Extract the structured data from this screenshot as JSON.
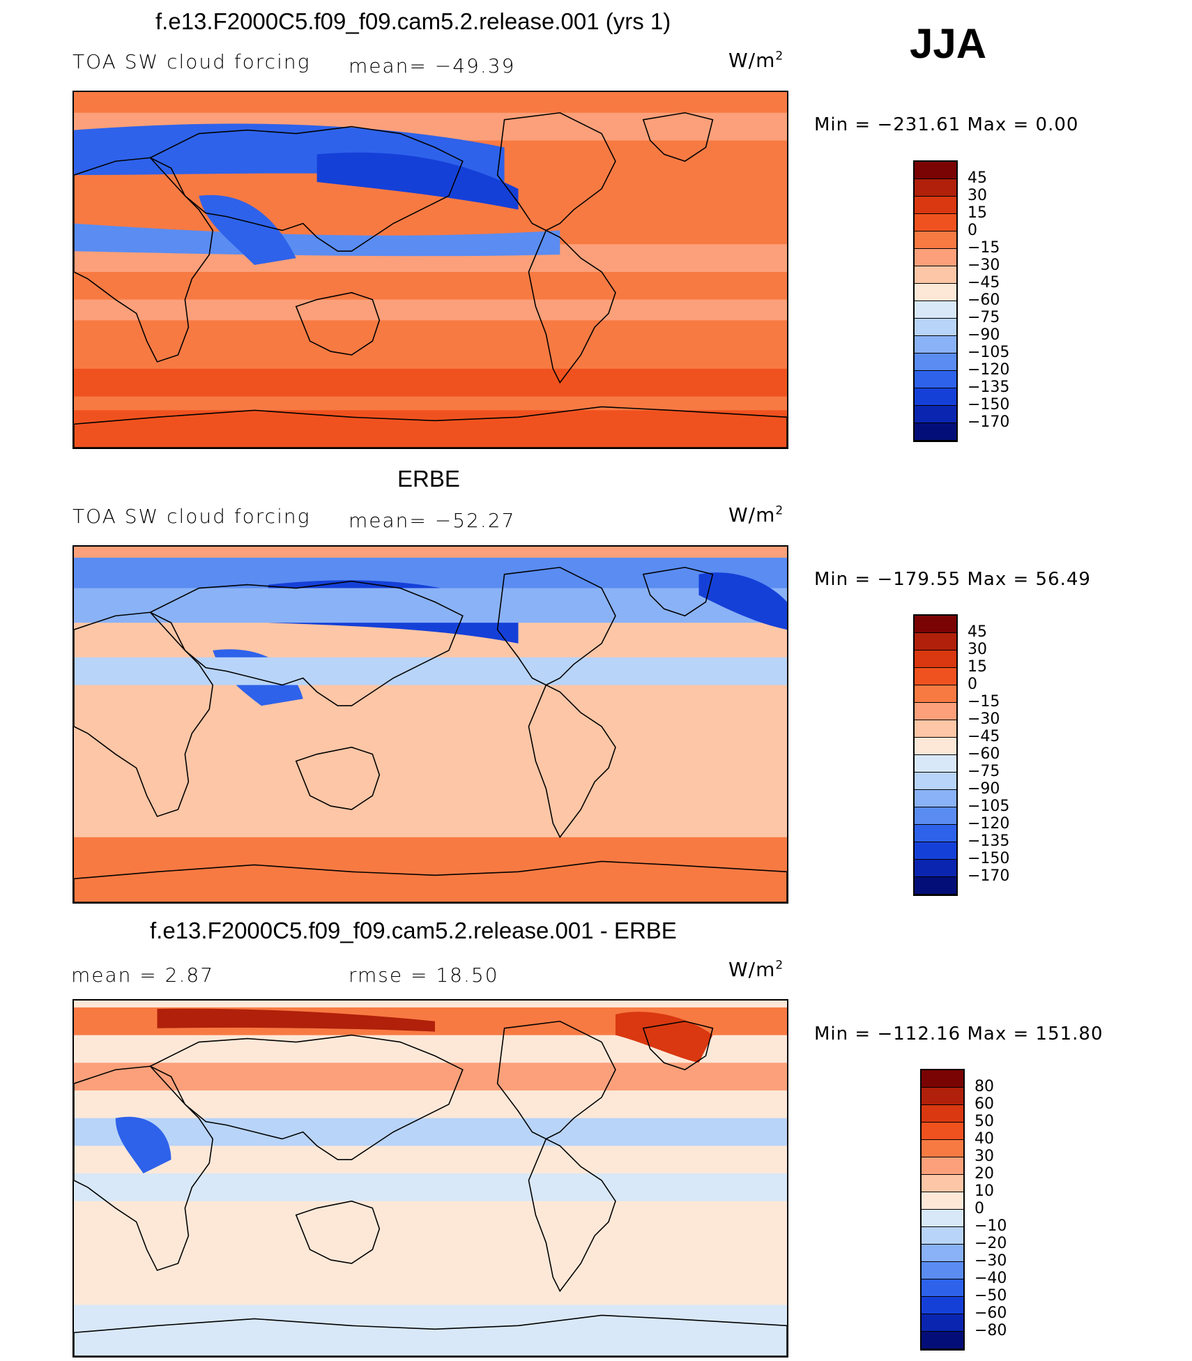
{
  "header": {
    "season": "JJA"
  },
  "chart_data": [
    {
      "type": "heatmap",
      "title": "f.e13.F2000C5.f09_f09.cam5.2.release.001 (yrs 1)",
      "left_label": "TOA SW cloud forcing",
      "center_label": "mean= −49.39",
      "units_base": "W/m",
      "units_exp": "2",
      "min_label": "Min  =  −231.61  Max  =     0.00",
      "levels": [
        "45",
        "30",
        "15",
        "0",
        "−15",
        "−30",
        "−45",
        "−60",
        "−75",
        "−90",
        "−105",
        "−120",
        "−135",
        "−150",
        "−170"
      ],
      "mean": -49.39,
      "min": -231.61,
      "max": 0.0
    },
    {
      "type": "heatmap",
      "title": "ERBE",
      "left_label": "TOA SW cloud forcing",
      "center_label": "mean= −52.27",
      "units_base": "W/m",
      "units_exp": "2",
      "min_label": "Min  =  −179.55  Max  =    56.49",
      "levels": [
        "45",
        "30",
        "15",
        "0",
        "−15",
        "−30",
        "−45",
        "−60",
        "−75",
        "−90",
        "−105",
        "−120",
        "−135",
        "−150",
        "−170"
      ],
      "mean": -52.27,
      "min": -179.55,
      "max": 56.49
    },
    {
      "type": "heatmap",
      "title": "f.e13.F2000C5.f09_f09.cam5.2.release.001 - ERBE",
      "left_label": "mean  =     2.87",
      "center_label": "rmse  =    18.50",
      "units_base": "W/m",
      "units_exp": "2",
      "min_label": "Min  =  −112.16  Max  =  151.80",
      "levels": [
        "80",
        "60",
        "50",
        "40",
        "30",
        "20",
        "10",
        "0",
        "−10",
        "−20",
        "−30",
        "−40",
        "−50",
        "−60",
        "−80"
      ],
      "mean": 2.87,
      "rmse": 18.5,
      "min": -112.16,
      "max": 151.8
    }
  ],
  "colors": {
    "palette16": [
      "#7a0403",
      "#b0200a",
      "#d93810",
      "#f0521f",
      "#f87a43",
      "#fba07a",
      "#fdc6a6",
      "#fde8d8",
      "#d8e8f8",
      "#b8d4f8",
      "#8ab2f6",
      "#5a8cf2",
      "#2e62ea",
      "#1540d8",
      "#0a26b0",
      "#040e78"
    ],
    "ocean_warm": "#fba07a",
    "coast": "#000000"
  }
}
